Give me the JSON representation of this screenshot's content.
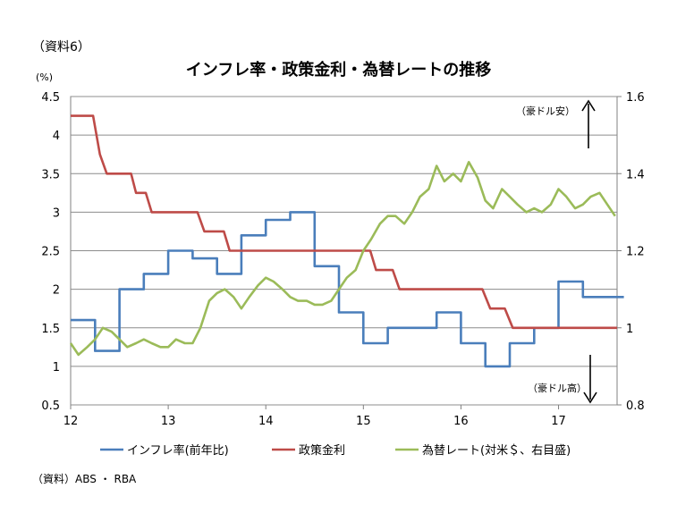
{
  "doc_label": "（資料6）",
  "y_unit": "(%)",
  "source": "（資料）ABS ・ RBA",
  "chart_data": {
    "type": "line",
    "title": "インフレ率・政策金利・為替レートの推移",
    "x_ticks": [
      "12",
      "13",
      "14",
      "15",
      "16",
      "17"
    ],
    "x_range": [
      12,
      17.6
    ],
    "y_left": {
      "range": [
        0.5,
        4.5
      ],
      "ticks": [
        "0.5",
        "1",
        "1.5",
        "2",
        "2.5",
        "3",
        "3.5",
        "4",
        "4.5"
      ]
    },
    "y_right": {
      "range": [
        0.8,
        1.6
      ],
      "ticks": [
        "0.8",
        "1",
        "1.2",
        "1.4",
        "1.6"
      ]
    },
    "grid": true,
    "legend_position": "bottom",
    "annotations": {
      "aud_weak": "（豪ドル安）",
      "aud_strong": "（豪ドル高）"
    },
    "series": [
      {
        "name": "インフレ率(前年比)",
        "axis": "left",
        "color": "#4A7EBB",
        "step": true,
        "x": [
          12.0,
          12.25,
          12.5,
          12.75,
          13.0,
          13.25,
          13.5,
          13.75,
          14.0,
          14.25,
          14.5,
          14.75,
          15.0,
          15.25,
          15.5,
          15.75,
          16.0,
          16.25,
          16.5,
          16.75,
          17.0,
          17.25,
          17.5
        ],
        "values": [
          1.6,
          1.2,
          2.0,
          2.2,
          2.5,
          2.4,
          2.2,
          2.7,
          2.9,
          3.0,
          2.3,
          1.7,
          1.3,
          1.5,
          1.5,
          1.7,
          1.3,
          1.0,
          1.3,
          1.5,
          2.1,
          1.9,
          1.9
        ]
      },
      {
        "name": "政策金利",
        "axis": "left",
        "color": "#BE4B48",
        "step": false,
        "x": [
          12.0,
          12.23,
          12.3,
          12.37,
          12.62,
          12.67,
          12.77,
          12.83,
          13.3,
          13.37,
          13.57,
          13.63,
          14.5,
          14.9,
          15.07,
          15.13,
          15.3,
          15.37,
          16.22,
          16.3,
          16.45,
          16.53,
          17.6
        ],
        "values": [
          4.25,
          4.25,
          3.75,
          3.5,
          3.5,
          3.25,
          3.25,
          3.0,
          3.0,
          2.75,
          2.75,
          2.5,
          2.5,
          2.5,
          2.5,
          2.25,
          2.25,
          2.0,
          2.0,
          1.75,
          1.75,
          1.5,
          1.5
        ]
      },
      {
        "name": "為替レート(対米＄、右目盛)",
        "axis": "right",
        "color": "#9BBB59",
        "step": false,
        "x": [
          12.0,
          12.08,
          12.17,
          12.25,
          12.33,
          12.42,
          12.5,
          12.58,
          12.67,
          12.75,
          12.83,
          12.92,
          13.0,
          13.08,
          13.17,
          13.25,
          13.33,
          13.42,
          13.5,
          13.58,
          13.67,
          13.75,
          13.83,
          13.92,
          14.0,
          14.08,
          14.17,
          14.25,
          14.33,
          14.42,
          14.5,
          14.58,
          14.67,
          14.75,
          14.83,
          14.92,
          15.0,
          15.08,
          15.17,
          15.25,
          15.33,
          15.42,
          15.5,
          15.58,
          15.67,
          15.75,
          15.83,
          15.92,
          16.0,
          16.08,
          16.17,
          16.25,
          16.33,
          16.42,
          16.5,
          16.58,
          16.67,
          16.75,
          16.83,
          16.92,
          17.0,
          17.08,
          17.17,
          17.25,
          17.33,
          17.42,
          17.5,
          17.58
        ],
        "values": [
          0.96,
          0.93,
          0.95,
          0.97,
          1.0,
          0.99,
          0.97,
          0.95,
          0.96,
          0.97,
          0.96,
          0.95,
          0.95,
          0.97,
          0.96,
          0.96,
          1.0,
          1.07,
          1.09,
          1.1,
          1.08,
          1.05,
          1.08,
          1.11,
          1.13,
          1.12,
          1.1,
          1.08,
          1.07,
          1.07,
          1.06,
          1.06,
          1.07,
          1.1,
          1.13,
          1.15,
          1.2,
          1.23,
          1.27,
          1.29,
          1.29,
          1.27,
          1.3,
          1.34,
          1.36,
          1.42,
          1.38,
          1.4,
          1.38,
          1.43,
          1.39,
          1.33,
          1.31,
          1.36,
          1.34,
          1.32,
          1.3,
          1.31,
          1.3,
          1.32,
          1.36,
          1.34,
          1.31,
          1.32,
          1.34,
          1.35,
          1.32,
          1.29
        ]
      }
    ]
  }
}
